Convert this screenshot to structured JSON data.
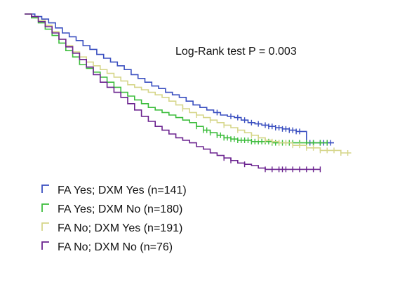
{
  "chart_data": {
    "type": "line",
    "subtype": "kaplan-meier-step",
    "title": "",
    "xlabel": "",
    "ylabel": "",
    "xlim": [
      0,
      100
    ],
    "ylim": [
      0,
      1
    ],
    "grid": false,
    "axes_visible": false,
    "legend_position": "bottom-left",
    "annotation": "Log-Rank test P = 0.003",
    "series": [
      {
        "name": "FA Yes; DXM Yes (n=141)",
        "color": "#3a4fc0",
        "points": [
          [
            0,
            1.0
          ],
          [
            3,
            0.99
          ],
          [
            5,
            0.98
          ],
          [
            7,
            0.965
          ],
          [
            9,
            0.945
          ],
          [
            11,
            0.925
          ],
          [
            13,
            0.91
          ],
          [
            15,
            0.895
          ],
          [
            17,
            0.875
          ],
          [
            19,
            0.86
          ],
          [
            21,
            0.84
          ],
          [
            23,
            0.825
          ],
          [
            25,
            0.81
          ],
          [
            27,
            0.795
          ],
          [
            29,
            0.78
          ],
          [
            31,
            0.76
          ],
          [
            33,
            0.745
          ],
          [
            35,
            0.73
          ],
          [
            37,
            0.715
          ],
          [
            39,
            0.705
          ],
          [
            41,
            0.69
          ],
          [
            43,
            0.68
          ],
          [
            45,
            0.67
          ],
          [
            47,
            0.655
          ],
          [
            49,
            0.64
          ],
          [
            51,
            0.63
          ],
          [
            53,
            0.62
          ],
          [
            55,
            0.61
          ],
          [
            57,
            0.6
          ],
          [
            59,
            0.595
          ],
          [
            61,
            0.59
          ],
          [
            63,
            0.58
          ],
          [
            65,
            0.57
          ],
          [
            67,
            0.565
          ],
          [
            69,
            0.56
          ],
          [
            71,
            0.555
          ],
          [
            73,
            0.55
          ],
          [
            75,
            0.545
          ],
          [
            77,
            0.54
          ],
          [
            79,
            0.535
          ],
          [
            80,
            0.535
          ],
          [
            82,
            0.49
          ],
          [
            84,
            0.49
          ],
          [
            86,
            0.49
          ],
          [
            88,
            0.49
          ],
          [
            90,
            0.49
          ]
        ],
        "censored_x": [
          56,
          60,
          62,
          64,
          66,
          68,
          70,
          71,
          72,
          73,
          74,
          75,
          76,
          77,
          78,
          79,
          80,
          82,
          83,
          84,
          86,
          87,
          88,
          89
        ]
      },
      {
        "name": "FA Yes; DXM No (n=180)",
        "color": "#3dbd3d",
        "points": [
          [
            0,
            1.0
          ],
          [
            2,
            0.985
          ],
          [
            4,
            0.965
          ],
          [
            6,
            0.94
          ],
          [
            8,
            0.915
          ],
          [
            10,
            0.885
          ],
          [
            12,
            0.855
          ],
          [
            14,
            0.83
          ],
          [
            16,
            0.8
          ],
          [
            18,
            0.785
          ],
          [
            20,
            0.77
          ],
          [
            22,
            0.75
          ],
          [
            24,
            0.73
          ],
          [
            26,
            0.71
          ],
          [
            28,
            0.69
          ],
          [
            30,
            0.675
          ],
          [
            32,
            0.66
          ],
          [
            34,
            0.645
          ],
          [
            36,
            0.63
          ],
          [
            38,
            0.62
          ],
          [
            40,
            0.61
          ],
          [
            42,
            0.6
          ],
          [
            44,
            0.59
          ],
          [
            46,
            0.58
          ],
          [
            48,
            0.57
          ],
          [
            50,
            0.555
          ],
          [
            52,
            0.54
          ],
          [
            54,
            0.53
          ],
          [
            56,
            0.52
          ],
          [
            58,
            0.51
          ],
          [
            60,
            0.505
          ],
          [
            62,
            0.5
          ],
          [
            64,
            0.5
          ],
          [
            66,
            0.495
          ],
          [
            68,
            0.495
          ],
          [
            70,
            0.495
          ],
          [
            72,
            0.49
          ],
          [
            74,
            0.49
          ],
          [
            76,
            0.49
          ],
          [
            78,
            0.49
          ],
          [
            80,
            0.49
          ],
          [
            83,
            0.49
          ],
          [
            85,
            0.49
          ],
          [
            88,
            0.49
          ]
        ],
        "censored_x": [
          50,
          52,
          53,
          54,
          56,
          57,
          58,
          59,
          60,
          61,
          62,
          63,
          64,
          65,
          66,
          67,
          68,
          69,
          70,
          71,
          72,
          73,
          74,
          75,
          76,
          77,
          78,
          80,
          82,
          84,
          86,
          88
        ]
      },
      {
        "name": "FA No; DXM Yes (n=191)",
        "color": "#d6d68a",
        "points": [
          [
            0,
            1.0
          ],
          [
            2,
            0.99
          ],
          [
            4,
            0.975
          ],
          [
            6,
            0.955
          ],
          [
            8,
            0.93
          ],
          [
            10,
            0.9
          ],
          [
            12,
            0.875
          ],
          [
            14,
            0.85
          ],
          [
            16,
            0.83
          ],
          [
            18,
            0.81
          ],
          [
            20,
            0.795
          ],
          [
            22,
            0.78
          ],
          [
            24,
            0.765
          ],
          [
            26,
            0.75
          ],
          [
            28,
            0.735
          ],
          [
            30,
            0.72
          ],
          [
            32,
            0.71
          ],
          [
            34,
            0.7
          ],
          [
            36,
            0.69
          ],
          [
            38,
            0.68
          ],
          [
            40,
            0.67
          ],
          [
            42,
            0.655
          ],
          [
            44,
            0.64
          ],
          [
            46,
            0.625
          ],
          [
            48,
            0.61
          ],
          [
            50,
            0.6
          ],
          [
            52,
            0.59
          ],
          [
            54,
            0.58
          ],
          [
            56,
            0.57
          ],
          [
            58,
            0.56
          ],
          [
            60,
            0.55
          ],
          [
            62,
            0.54
          ],
          [
            64,
            0.53
          ],
          [
            66,
            0.52
          ],
          [
            68,
            0.51
          ],
          [
            70,
            0.5
          ],
          [
            72,
            0.495
          ],
          [
            74,
            0.49
          ],
          [
            76,
            0.49
          ],
          [
            78,
            0.48
          ],
          [
            80,
            0.48
          ],
          [
            82,
            0.47
          ],
          [
            84,
            0.47
          ],
          [
            86,
            0.46
          ],
          [
            88,
            0.46
          ],
          [
            90,
            0.46
          ],
          [
            92,
            0.45
          ],
          [
            95,
            0.45
          ]
        ],
        "censored_x": [
          46,
          50,
          54,
          58,
          62,
          66,
          68,
          70,
          72,
          74,
          76,
          78,
          80,
          82,
          84,
          86,
          88,
          90,
          92,
          94
        ]
      },
      {
        "name": "FA No; DXM No (n=76)",
        "color": "#6b238f",
        "points": [
          [
            0,
            1.0
          ],
          [
            2,
            0.99
          ],
          [
            4,
            0.97
          ],
          [
            6,
            0.95
          ],
          [
            8,
            0.925
          ],
          [
            10,
            0.9
          ],
          [
            12,
            0.87
          ],
          [
            14,
            0.845
          ],
          [
            16,
            0.82
          ],
          [
            18,
            0.79
          ],
          [
            20,
            0.76
          ],
          [
            22,
            0.73
          ],
          [
            24,
            0.71
          ],
          [
            26,
            0.69
          ],
          [
            28,
            0.67
          ],
          [
            30,
            0.645
          ],
          [
            32,
            0.62
          ],
          [
            34,
            0.595
          ],
          [
            36,
            0.575
          ],
          [
            38,
            0.555
          ],
          [
            40,
            0.54
          ],
          [
            42,
            0.525
          ],
          [
            44,
            0.51
          ],
          [
            46,
            0.5
          ],
          [
            48,
            0.49
          ],
          [
            50,
            0.475
          ],
          [
            52,
            0.465
          ],
          [
            54,
            0.45
          ],
          [
            56,
            0.44
          ],
          [
            58,
            0.43
          ],
          [
            60,
            0.42
          ],
          [
            62,
            0.41
          ],
          [
            64,
            0.405
          ],
          [
            66,
            0.4
          ],
          [
            68,
            0.39
          ],
          [
            70,
            0.385
          ],
          [
            72,
            0.385
          ],
          [
            74,
            0.385
          ],
          [
            76,
            0.385
          ],
          [
            78,
            0.385
          ],
          [
            80,
            0.385
          ],
          [
            82,
            0.385
          ],
          [
            84,
            0.385
          ],
          [
            86,
            0.385
          ]
        ],
        "censored_x": [
          58,
          60,
          64,
          70,
          72,
          74,
          75,
          76,
          78,
          80,
          82,
          84,
          86
        ]
      }
    ]
  }
}
